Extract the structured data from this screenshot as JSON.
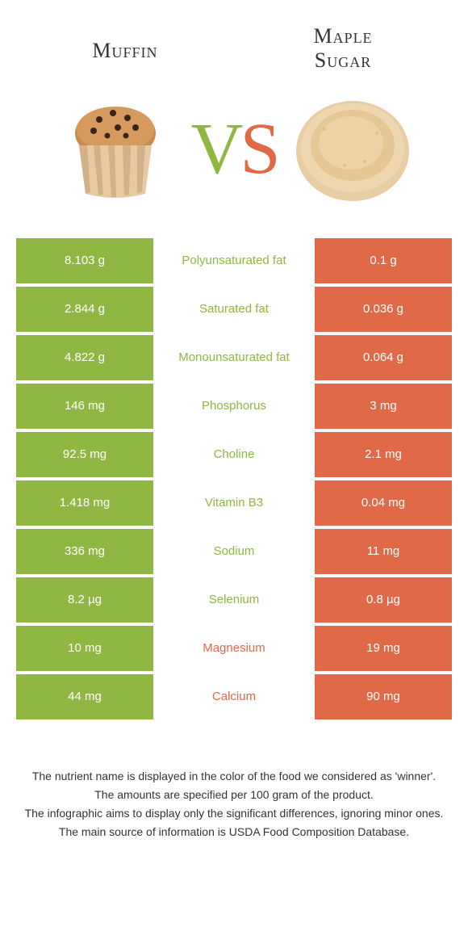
{
  "colors": {
    "left": "#8fb741",
    "right": "#e06a47",
    "text": "#333333",
    "white": "#ffffff"
  },
  "food_left": {
    "title": "Muffin"
  },
  "food_right": {
    "title_line1": "Maple",
    "title_line2": "Sugar"
  },
  "vs": {
    "v": "V",
    "s": "S"
  },
  "rows": [
    {
      "left": "8.103 g",
      "label": "Polyunsaturated fat",
      "right": "0.1 g",
      "winner": "left"
    },
    {
      "left": "2.844 g",
      "label": "Saturated fat",
      "right": "0.036 g",
      "winner": "left"
    },
    {
      "left": "4.822 g",
      "label": "Monounsaturated fat",
      "right": "0.064 g",
      "winner": "left"
    },
    {
      "left": "146 mg",
      "label": "Phosphorus",
      "right": "3 mg",
      "winner": "left"
    },
    {
      "left": "92.5 mg",
      "label": "Choline",
      "right": "2.1 mg",
      "winner": "left"
    },
    {
      "left": "1.418 mg",
      "label": "Vitamin B3",
      "right": "0.04 mg",
      "winner": "left"
    },
    {
      "left": "336 mg",
      "label": "Sodium",
      "right": "11 mg",
      "winner": "left"
    },
    {
      "left": "8.2 µg",
      "label": "Selenium",
      "right": "0.8 µg",
      "winner": "left"
    },
    {
      "left": "10 mg",
      "label": "Magnesium",
      "right": "19 mg",
      "winner": "right"
    },
    {
      "left": "44 mg",
      "label": "Calcium",
      "right": "90 mg",
      "winner": "right"
    }
  ],
  "footer": {
    "line1": "The nutrient name is displayed in the color of the food we considered as 'winner'.",
    "line2": "The amounts are specified per 100 gram of the product.",
    "line3": "The infographic aims to display only the significant differences, ignoring minor ones.",
    "line4": "The main source of information is USDA Food Composition Database."
  }
}
